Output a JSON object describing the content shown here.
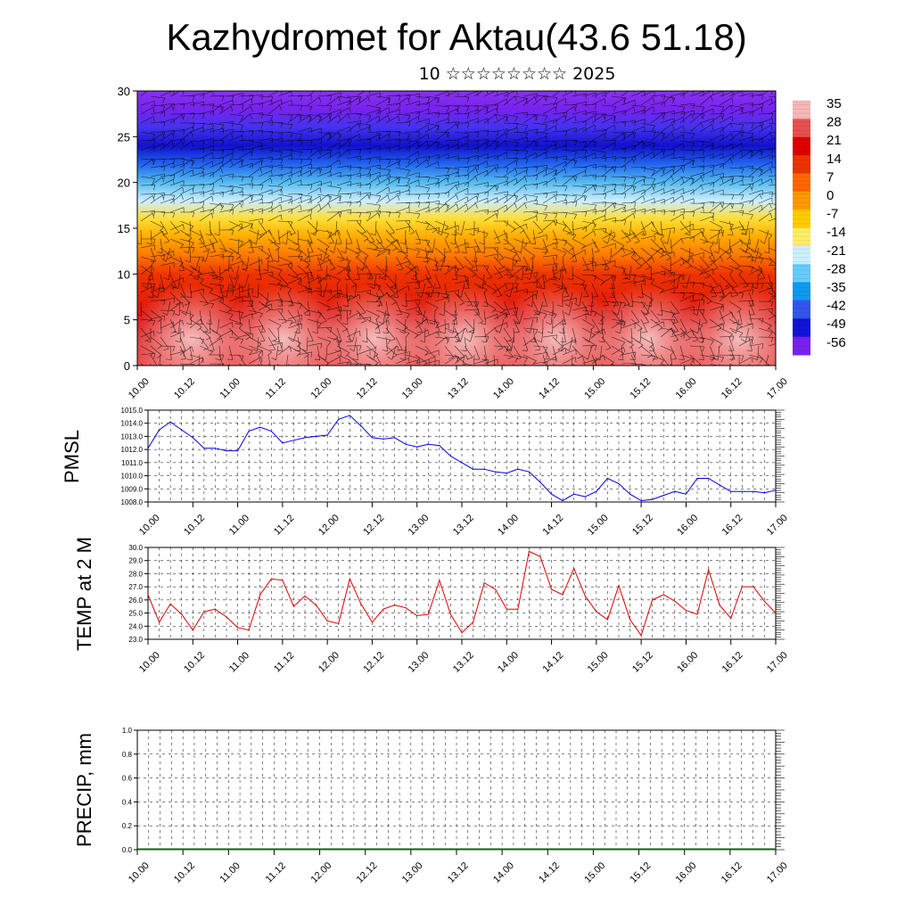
{
  "header": {
    "title": "Kazhydromet for Aktau(43.6 51.18)",
    "subtitle": "10 ☆☆☆☆☆☆☆☆ 2025"
  },
  "time_ticks": [
    "10.00",
    "10.12",
    "11.00",
    "11.12",
    "12.00",
    "12.12",
    "13.00",
    "13.12",
    "14.00",
    "14.12",
    "15.00",
    "15.12",
    "16.00",
    "16.12",
    "17.00"
  ],
  "colors": {
    "pmsl_line": "#0000ee",
    "temp_line": "#dd0000",
    "grid": "#000000"
  },
  "chart_data": [
    {
      "type": "heatmap",
      "title": "",
      "ylim": [
        0,
        30
      ],
      "yticks": [
        0,
        5,
        10,
        15,
        20,
        25,
        30
      ],
      "xticks": [
        "10.00",
        "10.12",
        "11.00",
        "11.12",
        "12.00",
        "12.12",
        "13.00",
        "13.12",
        "14.00",
        "14.12",
        "15.00",
        "15.12",
        "16.00",
        "16.12",
        "17.00"
      ],
      "colorbar_labels": [
        "35",
        "28",
        "21",
        "14",
        "7",
        "0",
        "-7",
        "-14",
        "-21",
        "-28",
        "-35",
        "-42",
        "-49",
        "-56"
      ],
      "colorbar_colors": [
        "#f4b8b8",
        "#e85050",
        "#dd0000",
        "#ee3300",
        "#ff6600",
        "#ff9900",
        "#ffcc00",
        "#ffee66",
        "#ccf0ff",
        "#66ccff",
        "#1199ee",
        "#3355ee",
        "#1111dd",
        "#7722ee"
      ],
      "height_bands": [
        {
          "y": 0,
          "color": "#e84a4a"
        },
        {
          "y": 5,
          "color": "#dd1111"
        },
        {
          "y": 10,
          "color": "#ee3300"
        },
        {
          "y": 12,
          "color": "#ff7700"
        },
        {
          "y": 14,
          "color": "#ffaa00"
        },
        {
          "y": 16,
          "color": "#ffdd33"
        },
        {
          "y": 18,
          "color": "#cceeff"
        },
        {
          "y": 20,
          "color": "#55bbee"
        },
        {
          "y": 22,
          "color": "#2266ee"
        },
        {
          "y": 24,
          "color": "#1111cc"
        },
        {
          "y": 26,
          "color": "#4433ee"
        },
        {
          "y": 28,
          "color": "#7722ee"
        },
        {
          "y": 30,
          "color": "#8833ee"
        }
      ]
    },
    {
      "type": "line",
      "ylabel": "PMSL",
      "ylim": [
        1008.0,
        1015.0
      ],
      "yticks": [
        "1008.0",
        "1009.0",
        "1010.0",
        "1011.0",
        "1012.0",
        "1013.0",
        "1014.0",
        "1015.0"
      ],
      "xticks": [
        "10.00",
        "10.12",
        "11.00",
        "11.12",
        "12.00",
        "12.12",
        "13.00",
        "13.12",
        "14.00",
        "14.12",
        "15.00",
        "15.12",
        "16.00",
        "16.12",
        "17.00"
      ],
      "x_start": 10.0,
      "x_step_days": 0.125,
      "values": [
        1012.1,
        1013.5,
        1014.1,
        1013.5,
        1012.9,
        1012.1,
        1012.1,
        1011.9,
        1011.9,
        1013.4,
        1013.7,
        1013.4,
        1012.5,
        1012.7,
        1012.9,
        1013.0,
        1013.1,
        1014.3,
        1014.6,
        1013.8,
        1012.9,
        1012.8,
        1012.9,
        1012.4,
        1012.2,
        1012.4,
        1012.3,
        1011.5,
        1011.0,
        1010.5,
        1010.5,
        1010.3,
        1010.2,
        1010.5,
        1010.3,
        1009.5,
        1008.6,
        1008.1,
        1008.6,
        1008.4,
        1008.8,
        1009.8,
        1009.4,
        1008.6,
        1008.1,
        1008.2,
        1008.5,
        1008.8,
        1008.6,
        1009.8,
        1009.8,
        1009.3,
        1008.8,
        1008.8,
        1008.8,
        1008.7,
        1008.9
      ]
    },
    {
      "type": "line",
      "ylabel": "TEMP at 2 M",
      "ylim": [
        23.0,
        30.0
      ],
      "yticks": [
        "23.0",
        "24.0",
        "25.0",
        "26.0",
        "27.0",
        "28.0",
        "29.0",
        "30.0"
      ],
      "xticks": [
        "10.00",
        "10.12",
        "11.00",
        "11.12",
        "12.00",
        "12.12",
        "13.00",
        "13.12",
        "14.00",
        "14.12",
        "15.00",
        "15.12",
        "16.00",
        "16.12",
        "17.00"
      ],
      "x_start": 10.0,
      "x_step_days": 0.125,
      "values": [
        26.4,
        24.3,
        25.7,
        24.9,
        23.7,
        25.1,
        25.3,
        24.7,
        23.9,
        23.7,
        26.4,
        27.6,
        27.5,
        25.5,
        26.3,
        25.6,
        24.4,
        24.2,
        27.6,
        25.7,
        24.3,
        25.3,
        25.6,
        25.4,
        24.8,
        24.9,
        27.5,
        24.9,
        23.5,
        24.3,
        27.3,
        26.8,
        25.3,
        25.3,
        29.7,
        29.3,
        26.8,
        26.4,
        28.4,
        26.3,
        25.1,
        24.5,
        27.1,
        24.5,
        23.3,
        26.0,
        26.4,
        25.9,
        25.2,
        24.9,
        28.3,
        25.6,
        24.6,
        27.0,
        27.0,
        25.9,
        25.0
      ]
    },
    {
      "type": "bar",
      "ylabel": "PRECIP, mm",
      "ylim": [
        0.0,
        1.0
      ],
      "yticks": [
        "0.0",
        "0.2",
        "0.4",
        "0.6",
        "0.8",
        "1.0"
      ],
      "xticks": [
        "10.00",
        "10.12",
        "11.00",
        "11.12",
        "12.00",
        "12.12",
        "13.00",
        "13.12",
        "14.00",
        "14.12",
        "15.00",
        "15.12",
        "16.00",
        "16.12",
        "17.00"
      ],
      "values": [
        0,
        0,
        0,
        0,
        0,
        0,
        0,
        0,
        0,
        0,
        0,
        0,
        0,
        0,
        0
      ]
    }
  ]
}
